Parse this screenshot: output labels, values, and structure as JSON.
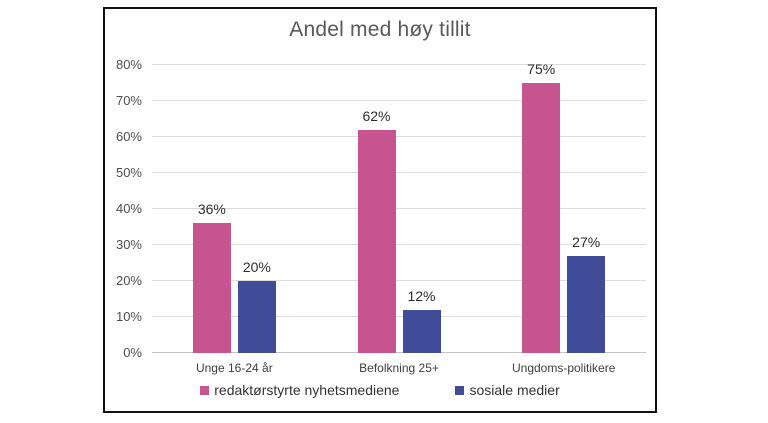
{
  "chart_data": {
    "type": "bar",
    "title": "Andel med høy tillit",
    "categories": [
      "Unge 16-24 år",
      "Befolkning 25+",
      "Ungdoms-politikere"
    ],
    "series": [
      {
        "name": "redaktørstyrte nyhetsmediene",
        "color": "#c6548e",
        "values": [
          36,
          62,
          75
        ],
        "labels": [
          "36%",
          "62%",
          "75%"
        ]
      },
      {
        "name": "sosiale medier",
        "color": "#414c99",
        "values": [
          20,
          12,
          27
        ],
        "labels": [
          "20%",
          "12%",
          "27%"
        ]
      }
    ],
    "ylim": [
      0,
      80
    ],
    "ytick_step": 10,
    "ytick_labels": [
      "0%",
      "10%",
      "20%",
      "30%",
      "40%",
      "50%",
      "60%",
      "70%",
      "80%"
    ],
    "xlabel": "",
    "ylabel": "",
    "grid": true,
    "legend_position": "bottom"
  }
}
